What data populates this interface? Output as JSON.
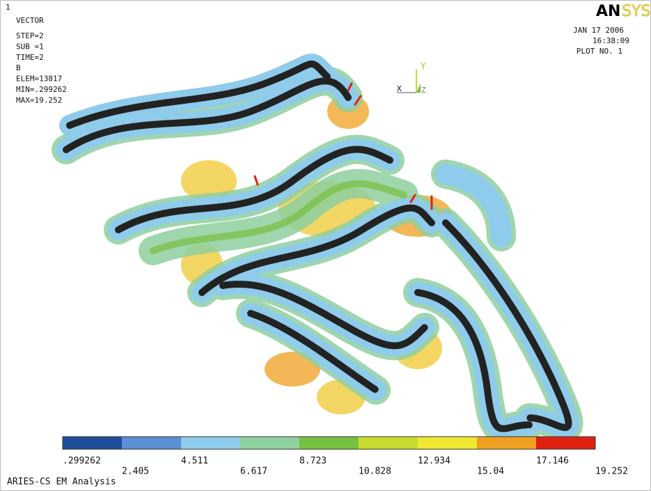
{
  "corner_label": "1",
  "info": {
    "title": "VECTOR",
    "lines": [
      "STEP=2",
      "SUB =1",
      "TIME=2",
      "B",
      "ELEM=13817",
      "MIN=.299262",
      "MAX=19.252"
    ]
  },
  "logo": {
    "bold": "AN",
    "light": "SYS"
  },
  "stamp": {
    "date": "JAN 17 2006",
    "time": "16:38:09",
    "plot_no": "PLOT NO.   1"
  },
  "triad": {
    "x": "X",
    "y": "Y",
    "z": "Z"
  },
  "legend": {
    "colors": [
      "#1f4e9c",
      "#5b8fd6",
      "#8fcbea",
      "#8fd0a0",
      "#78c040",
      "#c8dc30",
      "#f0e830",
      "#f0a020",
      "#e02010"
    ],
    "labels": [
      ".299262",
      "2.405",
      "4.511",
      "6.617",
      "8.723",
      "10.828",
      "12.934",
      "15.04",
      "17.146",
      "19.252"
    ]
  },
  "footer": "ARIES-CS EM Analysis"
}
